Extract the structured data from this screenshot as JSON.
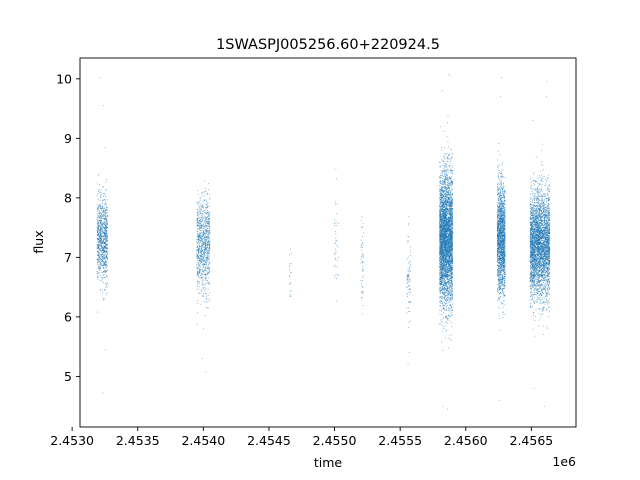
{
  "chart_data": {
    "type": "scatter",
    "title": "1SWASPJ005256.60+220924.5",
    "xlabel": "time",
    "ylabel": "flux",
    "x_offset_label": "1e6",
    "xlim": [
      2453060,
      2456840
    ],
    "ylim": [
      4.15,
      10.35
    ],
    "x_ticks": [
      2453000,
      2453500,
      2454000,
      2454500,
      2455000,
      2455500,
      2456000,
      2456500
    ],
    "x_tick_labels": [
      "2.4530",
      "2.4535",
      "2.4540",
      "2.4545",
      "2.4550",
      "2.4555",
      "2.4560",
      "2.4565"
    ],
    "y_ticks": [
      5,
      6,
      7,
      8,
      9,
      10
    ],
    "y_tick_labels": [
      "5",
      "6",
      "7",
      "8",
      "9",
      "10"
    ],
    "grid": false,
    "marker_color": "#1f77b4",
    "series": [
      {
        "segments": [
          {
            "x_range": [
              2453190,
              2453270
            ],
            "y_center": 7.3,
            "y_spread": 0.7,
            "density": 900
          },
          {
            "x_range": [
              2453950,
              2454050
            ],
            "y_center": 7.2,
            "y_spread": 0.8,
            "density": 900
          },
          {
            "x_range": [
              2454655,
              2454670
            ],
            "y_center": 6.7,
            "y_spread": 0.6,
            "density": 20
          },
          {
            "x_range": [
              2455000,
              2455030
            ],
            "y_center": 7.2,
            "y_spread": 0.9,
            "density": 40
          },
          {
            "x_range": [
              2455200,
              2455220
            ],
            "y_center": 6.9,
            "y_spread": 0.8,
            "density": 50
          },
          {
            "x_range": [
              2455550,
              2455580
            ],
            "y_center": 6.6,
            "y_spread": 0.9,
            "density": 80
          },
          {
            "x_range": [
              2455800,
              2455900
            ],
            "y_center": 7.3,
            "y_spread": 1.1,
            "density": 4000
          },
          {
            "x_range": [
              2456240,
              2456300
            ],
            "y_center": 7.3,
            "y_spread": 0.9,
            "density": 1800
          },
          {
            "x_range": [
              2456490,
              2456640
            ],
            "y_center": 7.2,
            "y_spread": 0.9,
            "density": 3500
          }
        ],
        "outliers": [
          [
            2453210,
            10.02
          ],
          [
            2453240,
            9.55
          ],
          [
            2453250,
            8.85
          ],
          [
            2453235,
            4.72
          ],
          [
            2453255,
            5.45
          ],
          [
            2454020,
            5.08
          ],
          [
            2453990,
            5.3
          ],
          [
            2454000,
            5.8
          ],
          [
            2455010,
            8.5
          ],
          [
            2455210,
            6.05
          ],
          [
            2455560,
            5.2
          ],
          [
            2455570,
            5.4
          ],
          [
            2455830,
            4.5
          ],
          [
            2455860,
            4.45
          ],
          [
            2455820,
            9.8
          ],
          [
            2455880,
            10.05
          ],
          [
            2455870,
            10.08
          ],
          [
            2455805,
            9.2
          ],
          [
            2456270,
            10.02
          ],
          [
            2456265,
            9.7
          ],
          [
            2456255,
            4.6
          ],
          [
            2456520,
            4.8
          ],
          [
            2456600,
            4.5
          ],
          [
            2456620,
            9.95
          ],
          [
            2456615,
            9.7
          ],
          [
            2456510,
            9.3
          ]
        ]
      }
    ]
  }
}
